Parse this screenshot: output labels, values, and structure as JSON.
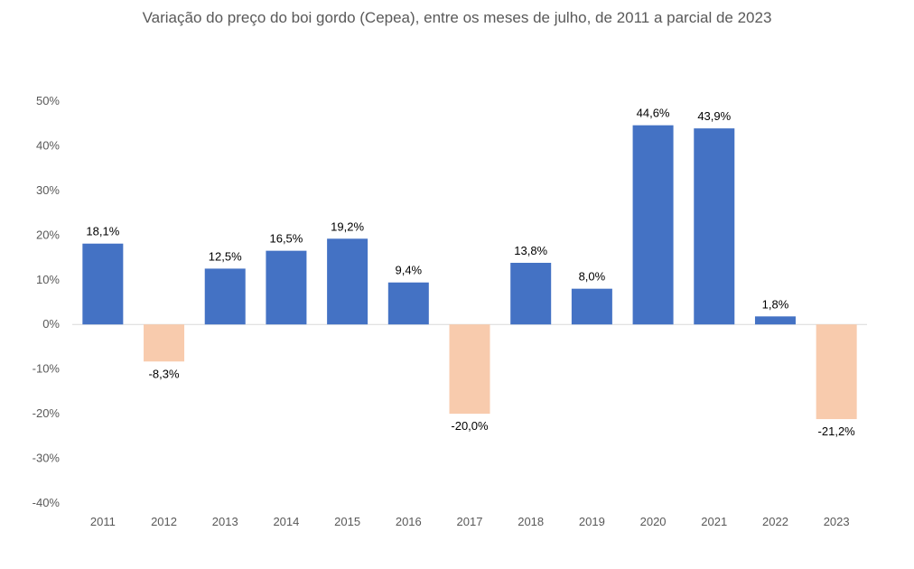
{
  "chart_data": {
    "type": "bar",
    "title": "Variação do preço do boi gordo (Cepea), entre os meses de julho, de 2011 a parcial de 2023",
    "xlabel": "",
    "ylabel": "",
    "categories": [
      "2011",
      "2012",
      "2013",
      "2014",
      "2015",
      "2016",
      "2017",
      "2018",
      "2019",
      "2020",
      "2021",
      "2022",
      "2023"
    ],
    "values": [
      18.1,
      -8.3,
      12.5,
      16.5,
      19.2,
      9.4,
      -20.0,
      13.8,
      8.0,
      44.6,
      43.9,
      1.8,
      -21.2
    ],
    "data_labels": [
      "18,1%",
      "-8,3%",
      "12,5%",
      "16,5%",
      "19,2%",
      "9,4%",
      "-20,0%",
      "13,8%",
      "8,0%",
      "44,6%",
      "43,9%",
      "1,8%",
      "-21,2%"
    ],
    "ylim": [
      -40,
      50
    ],
    "yticks": [
      50,
      40,
      30,
      20,
      10,
      0,
      -10,
      -20,
      -30,
      -40
    ],
    "ytick_labels": [
      "50%",
      "40%",
      "30%",
      "20%",
      "10%",
      "0%",
      "-10%",
      "-20%",
      "-30%",
      "-40%"
    ],
    "grid": false,
    "legend": "none",
    "colors": {
      "positive": "#4472C4",
      "negative": "#F8CBAD",
      "axis": "#D9D9D9",
      "text": "#595959"
    }
  }
}
